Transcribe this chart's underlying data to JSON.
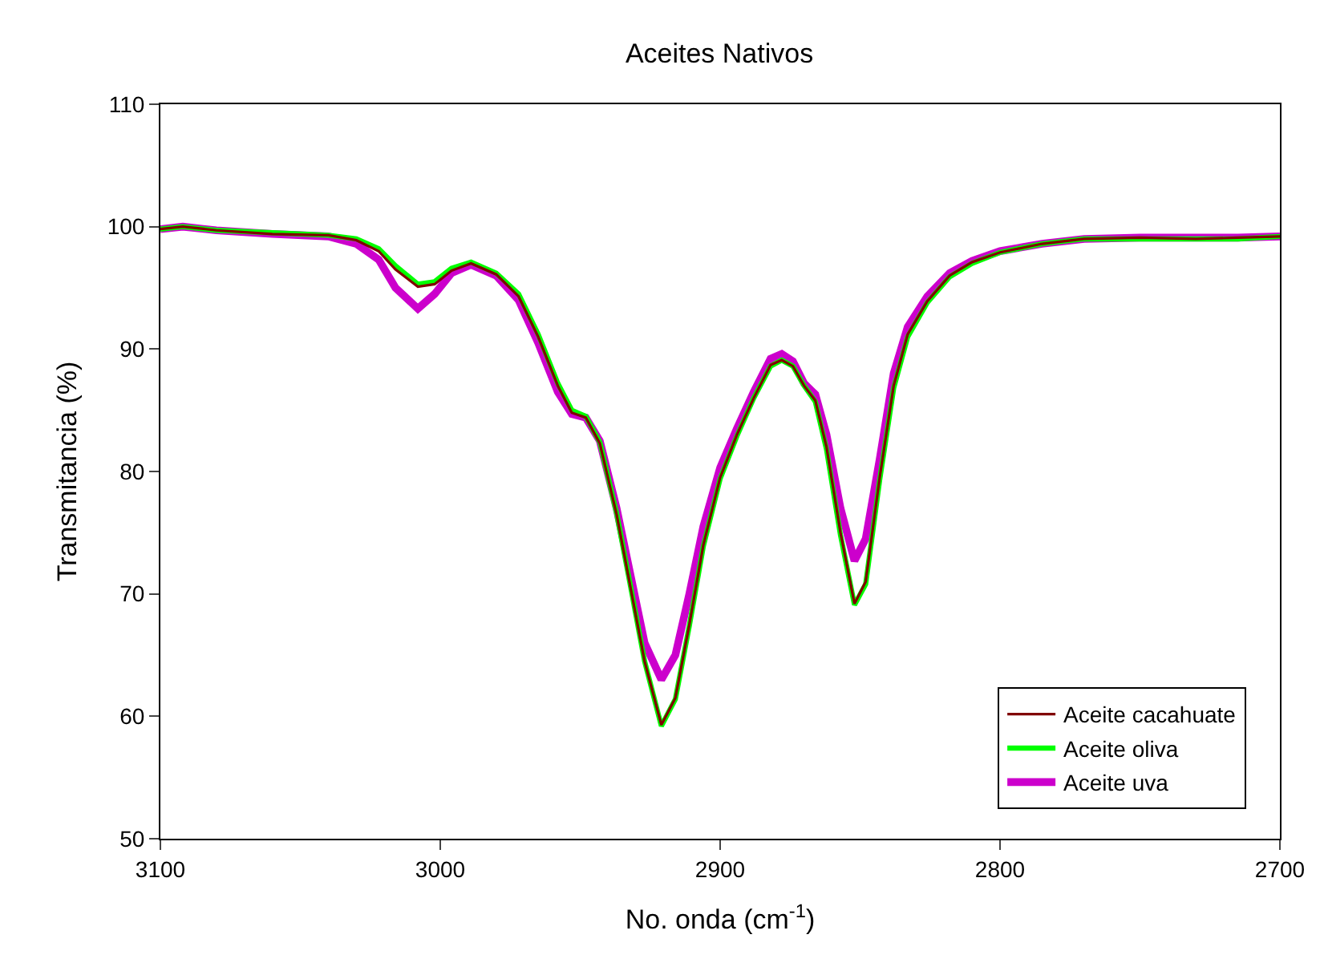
{
  "chart_data": {
    "type": "line",
    "title": "Aceites Nativos",
    "xlabel": "No. onda (cm$^{-1}$)",
    "ylabel": "Transmitancia (%)",
    "xlim": [
      3100,
      2700
    ],
    "ylim": [
      50,
      110
    ],
    "xticks": [
      3100,
      3000,
      2900,
      2800,
      2700
    ],
    "yticks": [
      50,
      60,
      70,
      80,
      90,
      100,
      110
    ],
    "grid": false,
    "legend": "bottom right",
    "marker": "none",
    "line_style": "solid",
    "x": [
      3100,
      3092,
      3080,
      3060,
      3040,
      3030,
      3022,
      3016,
      3008,
      3002,
      2996,
      2989,
      2980,
      2972,
      2965,
      2958,
      2953,
      2948,
      2943,
      2937,
      2932,
      2927,
      2921,
      2916,
      2911,
      2906,
      2900,
      2894,
      2888,
      2882,
      2878,
      2874,
      2870,
      2866,
      2862,
      2857,
      2852,
      2848,
      2843,
      2838,
      2833,
      2826,
      2818,
      2810,
      2800,
      2785,
      2770,
      2750,
      2730,
      2715,
      2700
    ],
    "series": [
      {
        "name": "Aceite cacahuate",
        "color": "#800000",
        "values": [
          99.8,
          100,
          99.7,
          99.4,
          99.3,
          98.9,
          98.0,
          96.5,
          95.1,
          95.3,
          96.4,
          97.0,
          96.1,
          94.3,
          91,
          87,
          84.8,
          84.4,
          82.3,
          76.5,
          70.5,
          64.5,
          59.3,
          61.5,
          67.5,
          74,
          79.5,
          83,
          86,
          88.7,
          89.1,
          88.6,
          87,
          85.8,
          82,
          75,
          69.2,
          71,
          79.5,
          87,
          91.2,
          93.9,
          96,
          97.1,
          97.9,
          98.6,
          99,
          99.1,
          99,
          99.1,
          99.2
        ]
      },
      {
        "name": "Aceite oliva",
        "color": "#00ff00",
        "values": [
          99.8,
          100,
          99.7,
          99.5,
          99.3,
          99.0,
          98.2,
          96.8,
          95.3,
          95.5,
          96.6,
          97.1,
          96.2,
          94.5,
          91.2,
          87.2,
          85,
          84.5,
          82.4,
          76.6,
          70.6,
          64.5,
          59.2,
          61.4,
          67.4,
          73.9,
          79.4,
          82.9,
          86,
          88.6,
          89.1,
          88.6,
          87,
          85.7,
          81.8,
          74.8,
          69.1,
          70.8,
          79.3,
          86.8,
          91,
          93.8,
          95.9,
          97,
          97.9,
          98.6,
          99,
          99,
          99,
          99,
          99.2
        ]
      },
      {
        "name": "Aceite uva",
        "color": "#cc00cc",
        "values": [
          99.8,
          100,
          99.7,
          99.4,
          99.2,
          98.6,
          97.3,
          95,
          93.3,
          94.5,
          96.2,
          96.9,
          96.0,
          94,
          90.5,
          86.5,
          84.7,
          84.4,
          82.5,
          77,
          71.5,
          66,
          63,
          65,
          70,
          75.5,
          80.3,
          83.5,
          86.5,
          89.2,
          89.6,
          89,
          87.2,
          86.3,
          83,
          77,
          72.7,
          74.5,
          81,
          88,
          91.8,
          94.3,
          96.2,
          97.2,
          98,
          98.6,
          99,
          99.1,
          99.1,
          99.1,
          99.2
        ]
      }
    ]
  }
}
